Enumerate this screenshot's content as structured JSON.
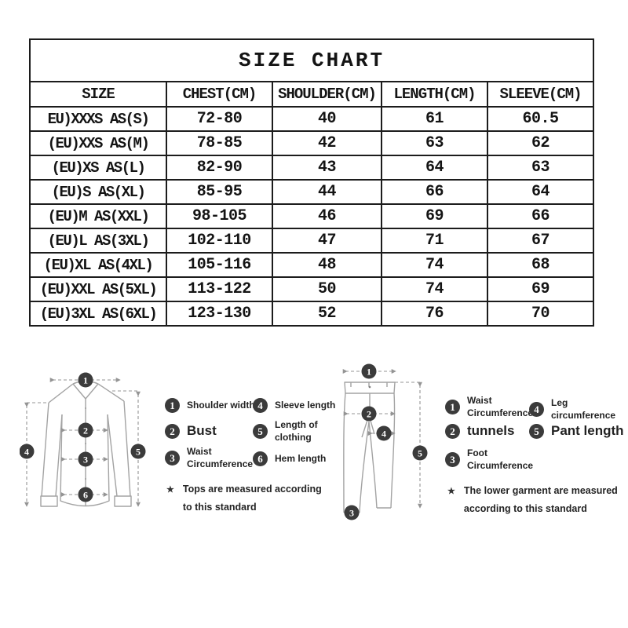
{
  "page_title": "SIZE CHART",
  "table": {
    "columns": [
      "SIZE",
      "CHEST(CM)",
      "SHOULDER(CM)",
      "LENGTH(CM)",
      "SLEEVE(CM)"
    ],
    "rows": [
      [
        "EU)XXXS AS(S)",
        "72-80",
        "40",
        "61",
        "60.5"
      ],
      [
        "(EU)XXS AS(M)",
        "78-85",
        "42",
        "63",
        "62"
      ],
      [
        "(EU)XS AS(L)",
        "82-90",
        "43",
        "64",
        "63"
      ],
      [
        "(EU)S AS(XL)",
        "85-95",
        "44",
        "66",
        "64"
      ],
      [
        "(EU)M AS(XXL)",
        "98-105",
        "46",
        "69",
        "66"
      ],
      [
        "(EU)L AS(3XL)",
        "102-110",
        "47",
        "71",
        "67"
      ],
      [
        "(EU)XL AS(4XL)",
        "105-116",
        "48",
        "74",
        "68"
      ],
      [
        "(EU)XXL AS(5XL)",
        "113-122",
        "50",
        "74",
        "69"
      ],
      [
        "(EU)3XL AS(6XL)",
        "123-130",
        "52",
        "76",
        "70"
      ]
    ]
  },
  "shirt_guide": {
    "items": [
      {
        "num": "1",
        "label": "Shoulder width"
      },
      {
        "num": "2",
        "label": "Bust"
      },
      {
        "num": "3",
        "label": "Waist Circumference"
      },
      {
        "num": "4",
        "label": "Sleeve length"
      },
      {
        "num": "5",
        "label": "Length of clothing"
      },
      {
        "num": "6",
        "label": "Hem length"
      }
    ],
    "note_star": "★",
    "note": "Tops are measured according to this standard"
  },
  "pants_guide": {
    "items": [
      {
        "num": "1",
        "label": "Waist Circumference"
      },
      {
        "num": "2",
        "label": "tunnels"
      },
      {
        "num": "3",
        "label": "Foot Circumference"
      },
      {
        "num": "4",
        "label": "Leg circumference"
      },
      {
        "num": "5",
        "label": "Pant length"
      }
    ],
    "note_star": "★",
    "note": "The lower garment are measured according to this standard"
  },
  "colors": {
    "badge": "#3b3b3b",
    "table_border": "#1c1c1c",
    "diagram_stroke": "#a3a3a3",
    "measure_stroke": "#949494"
  }
}
